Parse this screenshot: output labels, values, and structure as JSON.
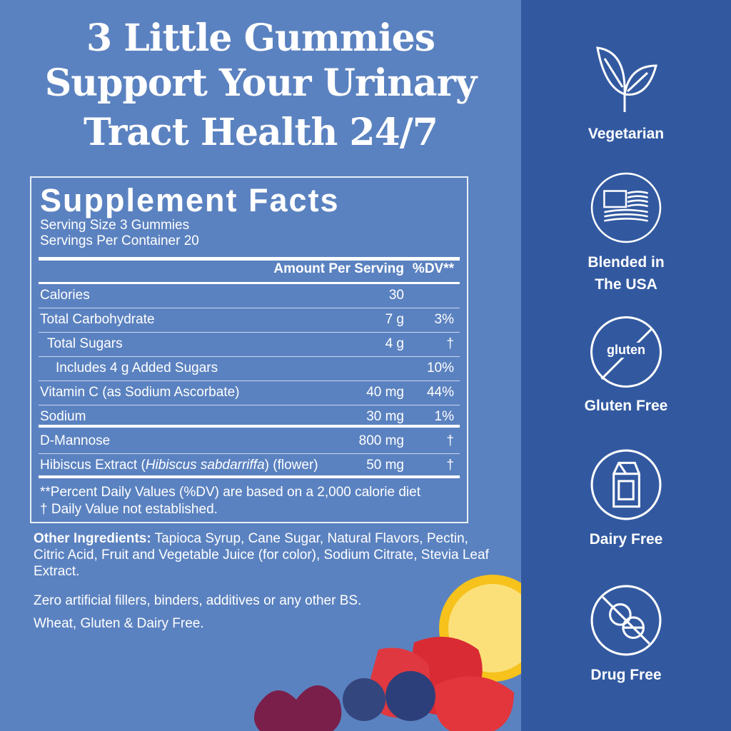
{
  "headline": [
    "3 Little Gummies",
    "Support Your Urinary",
    "Tract Health 24/7"
  ],
  "facts": {
    "title": "Supplement Facts",
    "serving_size": "Serving Size 3 Gummies",
    "servings_per_container": "Servings Per Container 20",
    "col_amount": "Amount Per Serving",
    "col_dv": "%DV**",
    "rows": [
      {
        "name": "Calories",
        "amount": "30",
        "dv": ""
      },
      {
        "name": "Total Carbohydrate",
        "amount": "7 g",
        "dv": "3%"
      },
      {
        "name": "Total Sugars",
        "amount": "4 g",
        "dv": "†"
      },
      {
        "name": "Includes 4 g Added Sugars",
        "amount": "",
        "dv": "10%"
      },
      {
        "name": "Vitamin C (as Sodium Ascorbate)",
        "amount": "40 mg",
        "dv": "44%"
      },
      {
        "name": "Sodium",
        "amount": "30 mg",
        "dv": "1%"
      },
      {
        "name": "D-Mannose",
        "amount": "800 mg",
        "dv": "†"
      },
      {
        "name_pre": "Hibiscus Extract (",
        "name_italic": "Hibiscus sabdarriffa",
        "name_post": ") (flower)",
        "amount": "50 mg",
        "dv": "†"
      }
    ],
    "footnote1": "**Percent Daily Values (%DV) are based on a 2,000 calorie diet",
    "footnote2": "† Daily Value not established."
  },
  "other_ingredients_label": "Other Ingredients:",
  "other_ingredients": " Tapioca Syrup, Cane Sugar, Natural Flavors, Pectin, Citric Acid, Fruit and Vegetable Juice (for color), Sodium Citrate, Stevia Leaf Extract.",
  "claim1": "Zero artificial fillers, binders, additives or any other BS.",
  "claim2": "Wheat, Gluten & Dairy Free.",
  "badges": [
    {
      "icon": "leaf-icon",
      "label": "Vegetarian"
    },
    {
      "icon": "usa-flag-icon",
      "label_line1": "Blended in",
      "label_line2": "The USA"
    },
    {
      "icon": "no-gluten-icon",
      "icon_text": "gluten",
      "label": "Gluten Free"
    },
    {
      "icon": "milk-carton-icon",
      "label": "Dairy Free"
    },
    {
      "icon": "no-pills-icon",
      "label": "Drug Free"
    }
  ],
  "colors": {
    "left_bg": "#5b82c0",
    "right_bg": "#3259a0",
    "text": "#ffffff"
  }
}
